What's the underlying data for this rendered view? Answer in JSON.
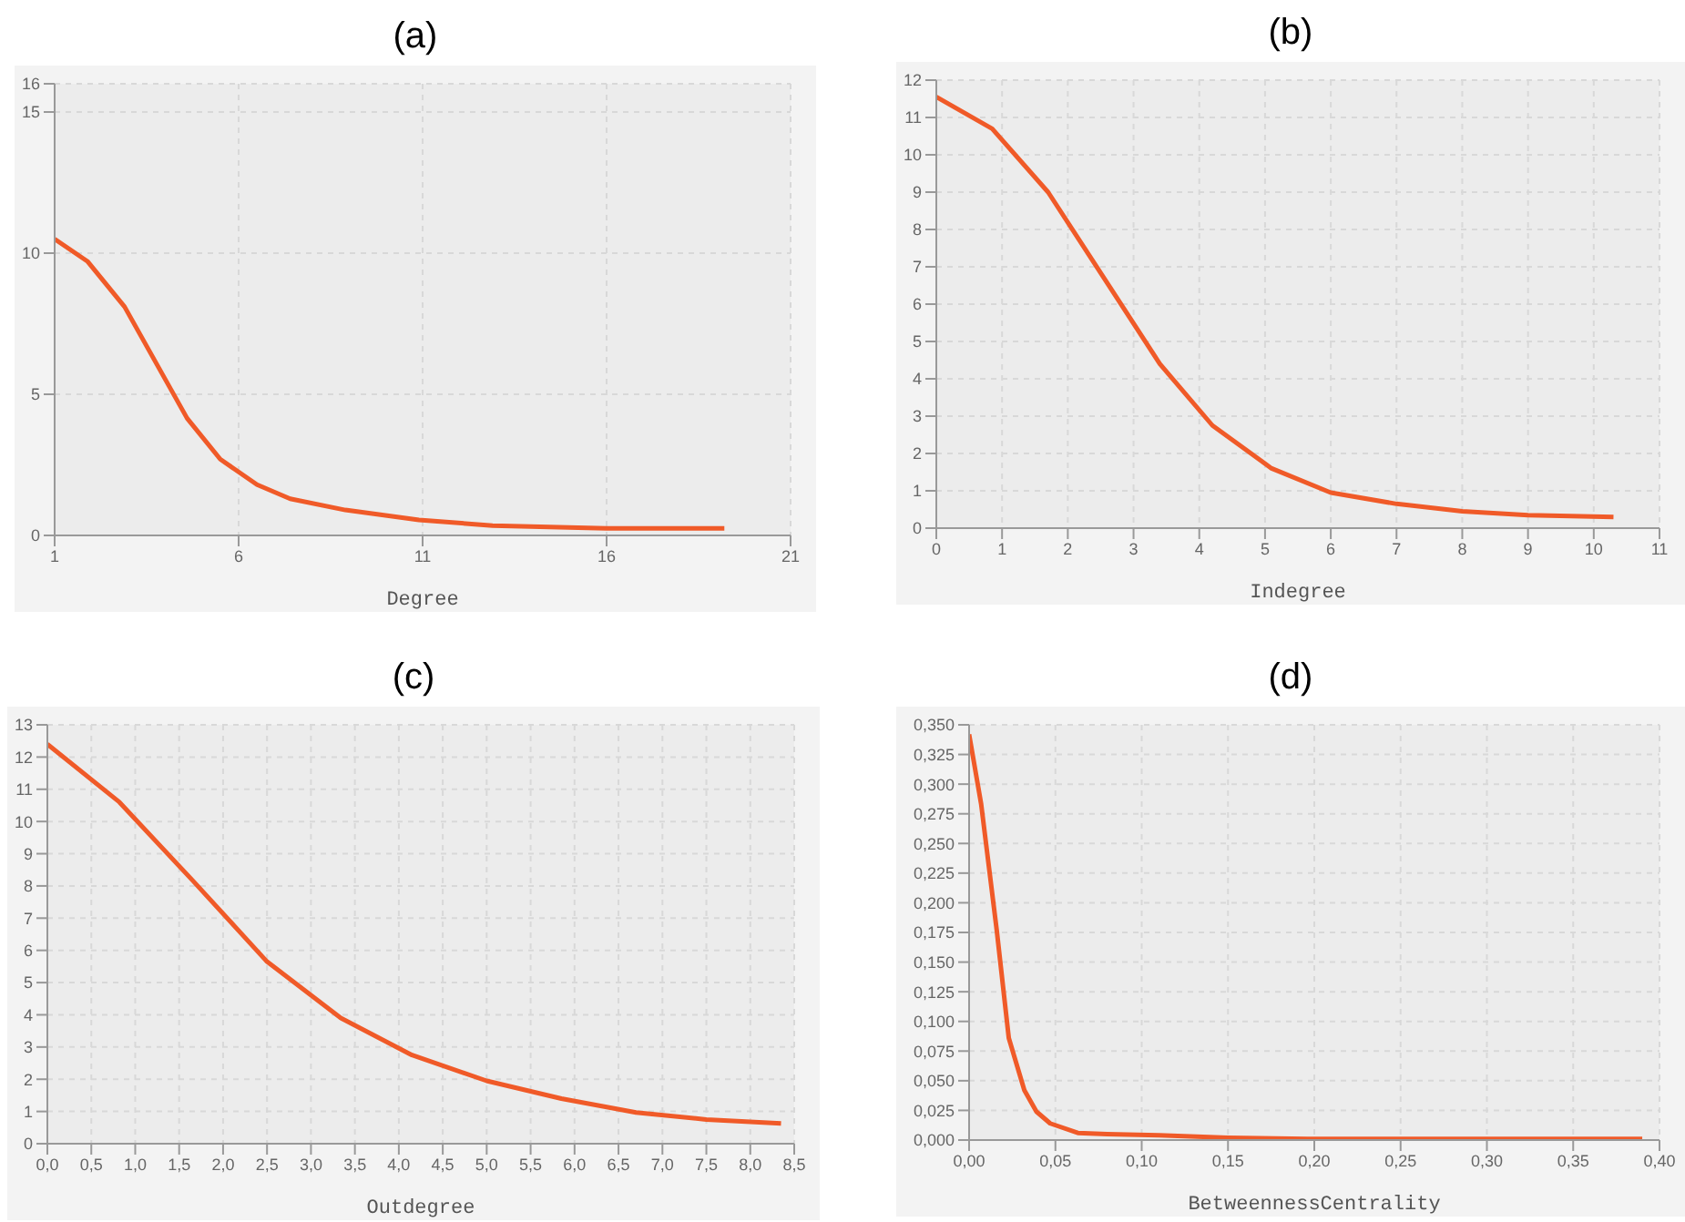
{
  "chart_data": [
    {
      "type": "line",
      "title": "(a)",
      "xlabel": "Degree",
      "color": "#f05a28",
      "grid": true,
      "xlim": [
        1,
        21
      ],
      "xticks": [
        1,
        6,
        11,
        16,
        21
      ],
      "ylim": [
        0,
        16
      ],
      "yticks": [
        0,
        5,
        10,
        15,
        16
      ],
      "x": [
        1,
        1.9,
        2.9,
        4.6,
        5.5,
        6.5,
        7.4,
        8.9,
        10.9,
        12.9,
        16,
        19.2
      ],
      "values": [
        10.5,
        9.7,
        8.1,
        4.15,
        2.7,
        1.8,
        1.3,
        0.9,
        0.55,
        0.35,
        0.25,
        0.25
      ]
    },
    {
      "type": "line",
      "title": "(b)",
      "xlabel": "Indegree",
      "color": "#f05a28",
      "grid": true,
      "xlim": [
        0,
        11
      ],
      "xticks": [
        0,
        1,
        2,
        3,
        4,
        5,
        6,
        7,
        8,
        9,
        10,
        11
      ],
      "ylim": [
        0,
        12
      ],
      "yticks": [
        0,
        1,
        2,
        3,
        4,
        5,
        6,
        7,
        8,
        9,
        10,
        11,
        12
      ],
      "x": [
        0,
        0.85,
        1.7,
        3.4,
        4.2,
        5.1,
        6,
        7,
        8,
        9,
        10.3
      ],
      "values": [
        11.55,
        10.7,
        9,
        4.4,
        2.75,
        1.6,
        0.95,
        0.65,
        0.45,
        0.35,
        0.3
      ]
    },
    {
      "type": "line",
      "title": "(c)",
      "xlabel": "Outdegree",
      "color": "#f05a28",
      "grid": true,
      "xlim": [
        0,
        8.5
      ],
      "xticks": [
        {
          "value": 0,
          "label": "0,0"
        },
        {
          "value": 0.5,
          "label": "0,5"
        },
        {
          "value": 1,
          "label": "1,0"
        },
        {
          "value": 1.5,
          "label": "1,5"
        },
        {
          "value": 2,
          "label": "2,0"
        },
        {
          "value": 2.5,
          "label": "2,5"
        },
        {
          "value": 3,
          "label": "3,0"
        },
        {
          "value": 3.5,
          "label": "3,5"
        },
        {
          "value": 4,
          "label": "4,0"
        },
        {
          "value": 4.5,
          "label": "4,5"
        },
        {
          "value": 5,
          "label": "5,0"
        },
        {
          "value": 5.5,
          "label": "5,5"
        },
        {
          "value": 6,
          "label": "6,0"
        },
        {
          "value": 6.5,
          "label": "6,5"
        },
        {
          "value": 7,
          "label": "7,0"
        },
        {
          "value": 7.5,
          "label": "7,5"
        },
        {
          "value": 8,
          "label": "8,0"
        },
        {
          "value": 8.5,
          "label": "8,5"
        }
      ],
      "ylim": [
        0,
        13
      ],
      "yticks": [
        0,
        1,
        2,
        3,
        4,
        5,
        6,
        7,
        8,
        9,
        10,
        11,
        12,
        13
      ],
      "x": [
        0,
        0.82,
        1.66,
        2.5,
        3.34,
        4.15,
        5,
        5.85,
        6.7,
        7.5,
        8.35
      ],
      "values": [
        12.4,
        10.6,
        8.15,
        5.65,
        3.9,
        2.75,
        1.95,
        1.4,
        0.97,
        0.75,
        0.63
      ]
    },
    {
      "type": "line",
      "title": "(d)",
      "xlabel": "BetweennessCentrality",
      "color": "#f05a28",
      "grid": true,
      "xlim": [
        0,
        0.4
      ],
      "xticks": [
        {
          "value": 0,
          "label": "0,00"
        },
        {
          "value": 0.05,
          "label": "0,05"
        },
        {
          "value": 0.1,
          "label": "0,10"
        },
        {
          "value": 0.15,
          "label": "0,15"
        },
        {
          "value": 0.2,
          "label": "0,20"
        },
        {
          "value": 0.25,
          "label": "0,25"
        },
        {
          "value": 0.3,
          "label": "0,30"
        },
        {
          "value": 0.35,
          "label": "0,35"
        },
        {
          "value": 0.4,
          "label": "0,40"
        }
      ],
      "ylim": [
        0,
        0.35
      ],
      "yticks": [
        {
          "value": 0,
          "label": "0,000"
        },
        {
          "value": 0.025,
          "label": "0,025"
        },
        {
          "value": 0.05,
          "label": "0,050"
        },
        {
          "value": 0.075,
          "label": "0,075"
        },
        {
          "value": 0.1,
          "label": "0,100"
        },
        {
          "value": 0.125,
          "label": "0,125"
        },
        {
          "value": 0.15,
          "label": "0,150"
        },
        {
          "value": 0.175,
          "label": "0,175"
        },
        {
          "value": 0.2,
          "label": "0,200"
        },
        {
          "value": 0.225,
          "label": "0,225"
        },
        {
          "value": 0.25,
          "label": "0,250"
        },
        {
          "value": 0.275,
          "label": "0,275"
        },
        {
          "value": 0.3,
          "label": "0,300"
        },
        {
          "value": 0.325,
          "label": "0,325"
        },
        {
          "value": 0.35,
          "label": "0,350"
        }
      ],
      "x": [
        0,
        0.007,
        0.016,
        0.023,
        0.032,
        0.039,
        0.047,
        0.063,
        0.08,
        0.11,
        0.15,
        0.196,
        0.39
      ],
      "values": [
        0.342,
        0.283,
        0.177,
        0.086,
        0.042,
        0.024,
        0.014,
        0.006,
        0.005,
        0.004,
        0.002,
        0.001,
        0.001
      ]
    }
  ]
}
